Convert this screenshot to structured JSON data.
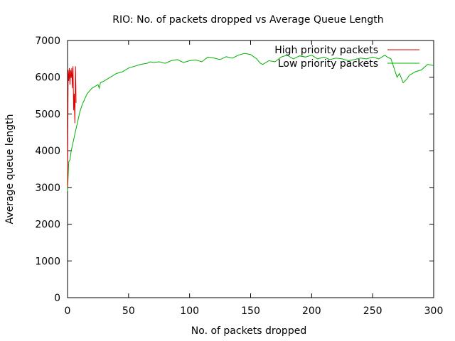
{
  "chart_data": {
    "type": "line",
    "title": "RIO: No. of packets dropped vs Average Queue Length",
    "xlabel": "No. of packets dropped",
    "ylabel": "Average queue length",
    "xlim": [
      0,
      300
    ],
    "ylim": [
      0,
      7000
    ],
    "xticks": [
      "0",
      "50",
      "100",
      "150",
      "200",
      "250",
      "300"
    ],
    "yticks": [
      "0",
      "1000",
      "2000",
      "3000",
      "4000",
      "5000",
      "6000",
      "7000"
    ],
    "grid": false,
    "legend": "top-right",
    "series": [
      {
        "name": "High priority packets",
        "color": "#e00000",
        "x": [
          0,
          0.5,
          1,
          1.5,
          2,
          2.5,
          3,
          3.5,
          4,
          4.5,
          5,
          5.5,
          6,
          6.5,
          7
        ],
        "y": [
          3000,
          6200,
          5900,
          6250,
          5800,
          6200,
          6000,
          6250,
          5700,
          6300,
          5100,
          5550,
          4750,
          6300,
          5300
        ]
      },
      {
        "name": "Low priority packets",
        "color": "#00b000",
        "x": [
          0,
          1,
          2,
          3,
          5,
          7,
          9,
          10,
          12,
          14,
          16,
          20,
          25,
          26,
          27,
          30,
          35,
          40,
          45,
          50,
          55,
          60,
          65,
          68,
          70,
          75,
          80,
          85,
          90,
          95,
          100,
          105,
          110,
          115,
          120,
          125,
          130,
          135,
          140,
          145,
          150,
          155,
          158,
          160,
          165,
          170,
          175,
          180,
          185,
          190,
          195,
          200,
          205,
          210,
          215,
          220,
          225,
          230,
          235,
          240,
          245,
          250,
          255,
          260,
          262,
          265,
          268,
          270,
          272,
          275,
          278,
          280,
          285,
          290,
          295,
          300
        ],
        "y": [
          2900,
          3700,
          3750,
          4000,
          4300,
          4600,
          4900,
          5050,
          5250,
          5400,
          5550,
          5700,
          5800,
          5700,
          5850,
          5900,
          6000,
          6100,
          6150,
          6250,
          6300,
          6350,
          6380,
          6420,
          6400,
          6420,
          6380,
          6450,
          6480,
          6400,
          6450,
          6470,
          6420,
          6550,
          6520,
          6480,
          6560,
          6520,
          6600,
          6650,
          6620,
          6500,
          6380,
          6350,
          6450,
          6420,
          6550,
          6600,
          6500,
          6580,
          6550,
          6600,
          6500,
          6550,
          6480,
          6520,
          6500,
          6450,
          6480,
          6520,
          6500,
          6550,
          6500,
          6600,
          6550,
          6500,
          6200,
          6000,
          6100,
          5850,
          5950,
          6050,
          6150,
          6200,
          6350,
          6320
        ]
      }
    ]
  }
}
